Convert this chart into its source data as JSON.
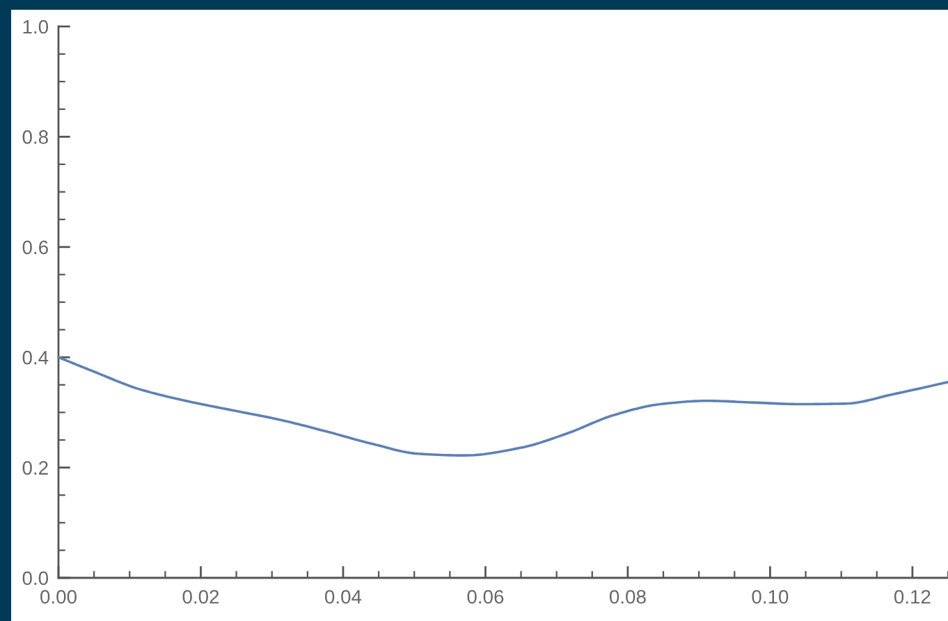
{
  "chart_data": {
    "type": "line",
    "x": [
      0.0,
      0.0048,
      0.0114,
      0.0179,
      0.0244,
      0.031,
      0.0375,
      0.0441,
      0.0506,
      0.0571,
      0.065,
      0.0715,
      0.078,
      0.0846,
      0.0911,
      0.0976,
      0.1042,
      0.1107,
      0.1173,
      0.125
    ],
    "values": [
      0.4,
      0.375,
      0.342,
      0.321,
      0.304,
      0.287,
      0.266,
      0.243,
      0.225,
      0.222,
      0.236,
      0.262,
      0.295,
      0.315,
      0.321,
      0.318,
      0.315,
      0.316,
      0.333,
      0.355
    ],
    "color": "#5e81b5",
    "xlim": [
      0,
      0.125
    ],
    "ylim": [
      0,
      1
    ],
    "xticks": [
      {
        "value": 0,
        "label": "0.00"
      },
      {
        "value": 0.02,
        "label": "0.02"
      },
      {
        "value": 0.04,
        "label": "0.04"
      },
      {
        "value": 0.06,
        "label": "0.06"
      },
      {
        "value": 0.08,
        "label": "0.08"
      },
      {
        "value": 0.1,
        "label": "0.10"
      },
      {
        "value": 0.12,
        "label": "0.12"
      }
    ],
    "yticks": [
      {
        "value": 0,
        "label": "0.0"
      },
      {
        "value": 0.2,
        "label": "0.2"
      },
      {
        "value": 0.4,
        "label": "0.4"
      },
      {
        "value": 0.6,
        "label": "0.6"
      },
      {
        "value": 0.8,
        "label": "0.8"
      },
      {
        "value": 1,
        "label": "1.0"
      }
    ]
  }
}
